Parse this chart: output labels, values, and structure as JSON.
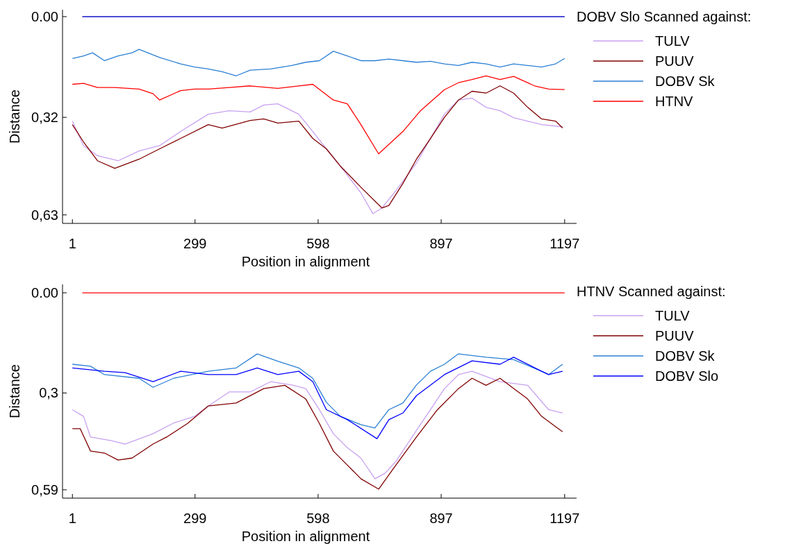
{
  "chart_data": [
    {
      "type": "line",
      "xlabel": "Position in alignment",
      "ylabel": "Distance",
      "legend_title": "DOBV Slo Scanned against:",
      "legend": "top right",
      "xlim": [
        -23,
        1226
      ],
      "xticks": [
        1,
        299,
        598,
        897,
        1197
      ],
      "ylim": [
        0.657,
        -0.022
      ],
      "yticks": [
        {
          "value": 0,
          "label": "0.00"
        },
        {
          "value": 0.32,
          "label": "0,32"
        },
        {
          "value": 0.63,
          "label": "0,63"
        }
      ],
      "series": [
        {
          "color": "#1010c8",
          "x": [
            25,
            1197
          ],
          "values": [
            0,
            0
          ]
        },
        {
          "name": "TULV",
          "color": "#c8a0f0",
          "x": [
            1,
            28,
            62,
            112,
            163,
            213,
            264,
            331,
            382,
            433,
            466,
            500,
            551,
            585,
            618,
            652,
            702,
            731,
            753,
            787,
            837,
            871,
            905,
            939,
            972,
            1006,
            1040,
            1073,
            1107,
            1141,
            1192
          ],
          "values": [
            0.332,
            0.41,
            0.442,
            0.458,
            0.427,
            0.41,
            0.365,
            0.31,
            0.299,
            0.303,
            0.281,
            0.277,
            0.31,
            0.365,
            0.42,
            0.475,
            0.56,
            0.626,
            0.608,
            0.553,
            0.465,
            0.387,
            0.31,
            0.265,
            0.259,
            0.288,
            0.299,
            0.321,
            0.332,
            0.343,
            0.35
          ]
        },
        {
          "name": "PUUV",
          "color": "#800000",
          "x": [
            1,
            28,
            62,
            104,
            163,
            213,
            264,
            331,
            365,
            433,
            466,
            500,
            551,
            585,
            618,
            652,
            702,
            753,
            770,
            804,
            837,
            871,
            905,
            939,
            972,
            1006,
            1040,
            1073,
            1107,
            1141,
            1175,
            1192
          ],
          "values": [
            0.343,
            0.398,
            0.458,
            0.482,
            0.453,
            0.42,
            0.387,
            0.343,
            0.354,
            0.33,
            0.325,
            0.338,
            0.332,
            0.387,
            0.42,
            0.475,
            0.542,
            0.608,
            0.6,
            0.53,
            0.453,
            0.387,
            0.32,
            0.265,
            0.237,
            0.243,
            0.22,
            0.243,
            0.288,
            0.325,
            0.332,
            0.354
          ]
        },
        {
          "name": "DOBV Sk",
          "color": "#2a7fd4",
          "x": [
            1,
            28,
            50,
            79,
            112,
            146,
            163,
            213,
            264,
            298,
            331,
            365,
            399,
            433,
            483,
            534,
            568,
            601,
            635,
            669,
            702,
            736,
            770,
            804,
            837,
            871,
            905,
            939,
            972,
            1006,
            1040,
            1073,
            1107,
            1141,
            1175,
            1197
          ],
          "values": [
            0.133,
            0.125,
            0.115,
            0.14,
            0.125,
            0.115,
            0.104,
            0.13,
            0.15,
            0.16,
            0.166,
            0.175,
            0.188,
            0.17,
            0.166,
            0.155,
            0.145,
            0.14,
            0.11,
            0.125,
            0.14,
            0.14,
            0.135,
            0.14,
            0.145,
            0.142,
            0.15,
            0.155,
            0.145,
            0.15,
            0.16,
            0.15,
            0.155,
            0.16,
            0.15,
            0.133
          ]
        },
        {
          "name": "HTNV",
          "color": "#ff0000",
          "x": [
            1,
            28,
            62,
            104,
            163,
            197,
            213,
            264,
            298,
            331,
            382,
            433,
            500,
            551,
            585,
            635,
            669,
            702,
            745,
            804,
            846,
            905,
            939,
            972,
            1006,
            1040,
            1073,
            1124,
            1158,
            1197
          ],
          "values": [
            0.215,
            0.212,
            0.225,
            0.225,
            0.23,
            0.245,
            0.265,
            0.235,
            0.23,
            0.23,
            0.225,
            0.22,
            0.228,
            0.22,
            0.215,
            0.265,
            0.277,
            0.343,
            0.436,
            0.365,
            0.3,
            0.232,
            0.21,
            0.2,
            0.188,
            0.2,
            0.19,
            0.22,
            0.23,
            0.232
          ]
        }
      ]
    },
    {
      "type": "line",
      "xlabel": "Position in alignment",
      "ylabel": "Distance",
      "legend_title": "HTNV Scanned against:",
      "legend": "top right",
      "xlim": [
        -23,
        1226
      ],
      "xticks": [
        1,
        299,
        598,
        897,
        1197
      ],
      "ylim": [
        0.615,
        -0.025
      ],
      "yticks": [
        {
          "value": 0,
          "label": "0.00"
        },
        {
          "value": 0.3,
          "label": "0,3"
        },
        {
          "value": 0.59,
          "label": "0,59"
        }
      ],
      "series": [
        {
          "color": "#ff0000",
          "x": [
            25,
            1197
          ],
          "values": [
            0,
            0
          ]
        },
        {
          "name": "TULV",
          "color": "#c8a0f0",
          "x": [
            1,
            28,
            45,
            95,
            129,
            197,
            247,
            298,
            331,
            382,
            433,
            483,
            534,
            568,
            601,
            635,
            669,
            702,
            736,
            761,
            787,
            837,
            871,
            905,
            939,
            972,
            1040,
            1107,
            1158,
            1192
          ],
          "values": [
            0.35,
            0.37,
            0.432,
            0.443,
            0.453,
            0.422,
            0.39,
            0.37,
            0.339,
            0.297,
            0.297,
            0.266,
            0.276,
            0.287,
            0.35,
            0.422,
            0.464,
            0.495,
            0.557,
            0.54,
            0.505,
            0.412,
            0.35,
            0.287,
            0.245,
            0.235,
            0.266,
            0.277,
            0.35,
            0.36
          ]
        },
        {
          "name": "PUUV",
          "color": "#800000",
          "x": [
            1,
            20,
            45,
            79,
            112,
            146,
            197,
            230,
            281,
            331,
            399,
            466,
            517,
            568,
            601,
            635,
            669,
            702,
            745,
            787,
            837,
            888,
            939,
            972,
            1006,
            1040,
            1107,
            1141,
            1175,
            1192
          ],
          "values": [
            0.407,
            0.407,
            0.474,
            0.48,
            0.501,
            0.495,
            0.453,
            0.432,
            0.391,
            0.339,
            0.33,
            0.287,
            0.277,
            0.318,
            0.391,
            0.474,
            0.516,
            0.557,
            0.588,
            0.516,
            0.432,
            0.35,
            0.287,
            0.256,
            0.277,
            0.256,
            0.318,
            0.37,
            0.401,
            0.416
          ]
        },
        {
          "name": "DOBV Sk",
          "color": "#2a7fd4",
          "x": [
            1,
            45,
            79,
            163,
            197,
            247,
            331,
            399,
            450,
            500,
            551,
            585,
            618,
            652,
            702,
            736,
            770,
            804,
            837,
            871,
            905,
            939,
            1006,
            1073,
            1141,
            1158,
            1192
          ],
          "values": [
            0.214,
            0.22,
            0.245,
            0.256,
            0.283,
            0.256,
            0.235,
            0.225,
            0.183,
            0.205,
            0.225,
            0.256,
            0.328,
            0.37,
            0.395,
            0.405,
            0.35,
            0.33,
            0.276,
            0.235,
            0.214,
            0.183,
            0.193,
            0.2,
            0.235,
            0.245,
            0.214
          ]
        },
        {
          "name": "DOBV Slo",
          "color": "#0000ff",
          "x": [
            1,
            79,
            129,
            197,
            264,
            331,
            399,
            450,
            500,
            551,
            585,
            618,
            669,
            741,
            770,
            804,
            837,
            905,
            972,
            1040,
            1073,
            1141,
            1158,
            1192
          ],
          "values": [
            0.225,
            0.235,
            0.239,
            0.266,
            0.235,
            0.245,
            0.245,
            0.225,
            0.245,
            0.235,
            0.266,
            0.35,
            0.38,
            0.437,
            0.38,
            0.36,
            0.308,
            0.245,
            0.204,
            0.214,
            0.193,
            0.235,
            0.245,
            0.235
          ]
        }
      ]
    }
  ]
}
